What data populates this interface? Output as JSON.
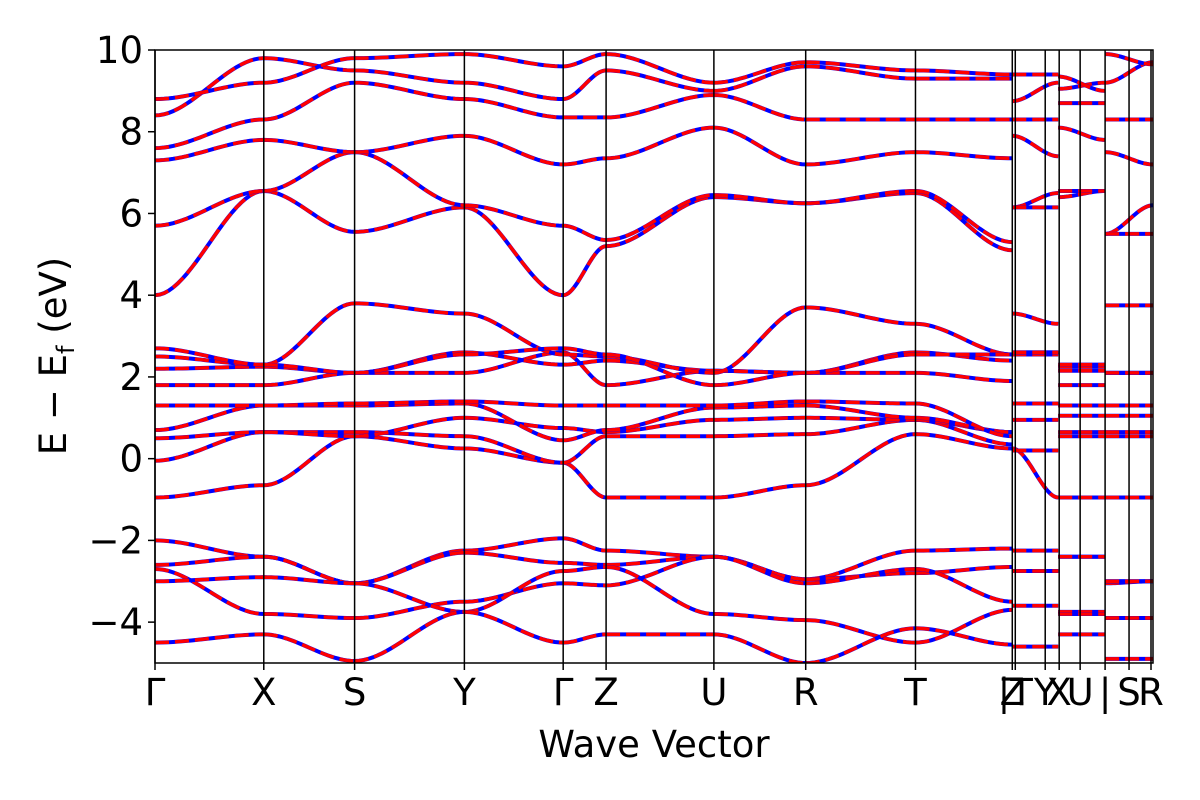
{
  "chart_data": {
    "type": "line",
    "title": "",
    "xlabel": "Wave Vector",
    "ylabel_main": "E − E",
    "ylabel_sub": "f",
    "ylabel_unit": " (eV)",
    "ylim": [
      -5,
      10
    ],
    "yticks": [
      {
        "value": 10,
        "label": "10"
      },
      {
        "value": 8,
        "label": "8"
      },
      {
        "value": 6,
        "label": "6"
      },
      {
        "value": 4,
        "label": "4"
      },
      {
        "value": 2,
        "label": "2"
      },
      {
        "value": 0,
        "label": "0"
      },
      {
        "value": -2,
        "label": "−2"
      },
      {
        "value": -4,
        "label": "−4"
      }
    ],
    "k_range": [
      0,
      1
    ],
    "high_symmetry_points": [
      {
        "label": "Γ",
        "k": 0.0
      },
      {
        "label": "X",
        "k": 0.109
      },
      {
        "label": "S",
        "k": 0.2
      },
      {
        "label": "Y",
        "k": 0.31
      },
      {
        "label": "Γ",
        "k": 0.409
      },
      {
        "label": "Z",
        "k": 0.452
      },
      {
        "label": "U",
        "k": 0.56
      },
      {
        "label": "R",
        "k": 0.652
      },
      {
        "label": "T",
        "k": 0.762
      },
      {
        "label": "Z",
        "k": 0.859
      },
      {
        "label": "|T",
        "k": 0.862
      },
      {
        "label": "Y",
        "k": 0.892
      },
      {
        "label": "X",
        "k": 0.906
      },
      {
        "label": "U",
        "k": 0.927
      },
      {
        "label": "|",
        "k": 0.952
      },
      {
        "label": "S",
        "k": 0.976
      },
      {
        "label": "R",
        "k": 0.998
      }
    ],
    "segment_boundaries": [
      0,
      0.109,
      0.2,
      0.31,
      0.409,
      0.452,
      0.56,
      0.652,
      0.762,
      0.859,
      0.905,
      0.952,
      1.0
    ],
    "series": [
      {
        "style": "solid",
        "color": "#0000ff"
      },
      {
        "style": "dashed",
        "color": "#ff0000"
      }
    ],
    "bands_segment_endpoints": [
      [
        [
          -0.95,
          -0.65
        ],
        [
          -0.65,
          0.55
        ],
        [
          0.55,
          0.25
        ],
        [
          0.25,
          -0.1
        ],
        [
          -0.1,
          -0.95
        ],
        [
          -0.95,
          -0.95
        ],
        [
          -0.95,
          -0.65
        ],
        [
          -0.65,
          0.6
        ],
        [
          0.6,
          0.25
        ],
        [
          0.25,
          -0.95
        ],
        [
          -0.95,
          -0.95
        ],
        [
          -0.95,
          -0.95
        ]
      ],
      [
        [
          -0.05,
          0.65
        ],
        [
          0.65,
          0.65
        ],
        [
          0.65,
          0.55
        ],
        [
          0.55,
          -0.1
        ],
        [
          -0.1,
          0.55
        ],
        [
          0.55,
          0.55
        ],
        [
          0.55,
          0.6
        ],
        [
          0.6,
          0.95
        ],
        [
          0.95,
          0.35
        ],
        [
          0.2,
          0.2
        ],
        [
          0.55,
          0.55
        ],
        [
          0.55,
          0.55
        ]
      ],
      [
        [
          0.5,
          0.65
        ],
        [
          0.65,
          0.55
        ],
        [
          0.55,
          1.0
        ],
        [
          1.0,
          0.75
        ],
        [
          0.75,
          0.65
        ],
        [
          0.65,
          0.95
        ],
        [
          0.95,
          1.0
        ],
        [
          1.0,
          0.95
        ],
        [
          0.95,
          0.65
        ],
        [
          0.95,
          0.95
        ],
        [
          0.65,
          0.65
        ],
        [
          0.65,
          0.65
        ]
      ],
      [
        [
          0.7,
          1.3
        ],
        [
          1.3,
          1.3
        ],
        [
          1.3,
          1.35
        ],
        [
          1.35,
          0.45
        ],
        [
          0.45,
          0.7
        ],
        [
          0.7,
          1.25
        ],
        [
          1.25,
          1.3
        ],
        [
          1.3,
          1.0
        ],
        [
          1.0,
          0.65
        ],
        [
          1.35,
          1.35
        ],
        [
          1.05,
          1.05
        ],
        [
          1.05,
          1.05
        ]
      ],
      [
        [
          1.3,
          1.3
        ],
        [
          1.3,
          1.35
        ],
        [
          1.35,
          1.4
        ],
        [
          1.4,
          1.3
        ],
        [
          1.3,
          1.3
        ],
        [
          1.3,
          1.3
        ],
        [
          1.3,
          1.4
        ],
        [
          1.4,
          1.35
        ],
        [
          1.35,
          0.55
        ],
        [
          1.35,
          1.35
        ],
        [
          1.3,
          1.3
        ],
        [
          1.3,
          1.3
        ]
      ],
      [
        [
          1.8,
          1.8
        ],
        [
          1.8,
          2.1
        ],
        [
          2.1,
          2.1
        ],
        [
          2.1,
          2.6
        ],
        [
          2.6,
          1.8
        ],
        [
          1.8,
          2.15
        ],
        [
          2.15,
          2.1
        ],
        [
          2.1,
          2.1
        ],
        [
          2.1,
          1.9
        ],
        [
          2.55,
          2.55
        ],
        [
          1.8,
          1.8
        ],
        [
          2.1,
          2.1
        ]
      ],
      [
        [
          2.2,
          2.25
        ],
        [
          2.25,
          2.1
        ],
        [
          2.1,
          2.6
        ],
        [
          2.6,
          2.3
        ],
        [
          2.3,
          2.4
        ],
        [
          2.4,
          2.15
        ],
        [
          2.15,
          2.1
        ],
        [
          2.1,
          2.6
        ],
        [
          2.6,
          2.4
        ],
        [
          2.6,
          2.6
        ],
        [
          2.15,
          2.15
        ],
        [
          2.1,
          2.1
        ]
      ],
      [
        [
          2.5,
          2.3
        ],
        [
          2.3,
          3.8
        ],
        [
          3.8,
          3.55
        ],
        [
          3.55,
          2.55
        ],
        [
          2.55,
          2.5
        ],
        [
          2.5,
          2.1
        ],
        [
          2.1,
          3.7
        ],
        [
          3.7,
          3.3
        ],
        [
          3.3,
          2.55
        ],
        [
          3.55,
          3.3
        ],
        [
          2.25,
          2.25
        ],
        [
          3.75,
          3.75
        ]
      ],
      [
        [
          2.7,
          2.3
        ],
        [
          2.3,
          2.1
        ],
        [
          2.1,
          2.55
        ],
        [
          2.55,
          2.7
        ],
        [
          2.7,
          2.55
        ],
        [
          2.55,
          1.8
        ],
        [
          1.8,
          2.1
        ],
        [
          2.1,
          2.55
        ],
        [
          2.55,
          2.55
        ],
        [
          2.6,
          2.6
        ],
        [
          2.3,
          2.3
        ],
        [
          2.1,
          2.1
        ]
      ],
      [
        [
          4.0,
          6.55
        ],
        [
          6.55,
          5.55
        ],
        [
          5.55,
          6.15
        ],
        [
          6.15,
          4.0
        ],
        [
          4.0,
          5.2
        ],
        [
          5.2,
          6.4
        ],
        [
          6.4,
          6.25
        ],
        [
          6.25,
          6.5
        ],
        [
          6.5,
          5.1
        ],
        [
          6.15,
          6.5
        ],
        [
          6.4,
          6.55
        ],
        [
          5.5,
          6.2
        ]
      ],
      [
        [
          5.7,
          6.55
        ],
        [
          6.55,
          7.5
        ],
        [
          7.5,
          6.2
        ],
        [
          6.2,
          5.7
        ],
        [
          5.7,
          5.35
        ],
        [
          5.35,
          6.45
        ],
        [
          6.45,
          6.25
        ],
        [
          6.25,
          6.55
        ],
        [
          6.55,
          5.3
        ],
        [
          6.15,
          6.15
        ],
        [
          6.55,
          6.55
        ],
        [
          5.5,
          5.5
        ]
      ],
      [
        [
          7.3,
          7.8
        ],
        [
          7.8,
          7.5
        ],
        [
          7.5,
          7.9
        ],
        [
          7.9,
          7.2
        ],
        [
          7.2,
          7.35
        ],
        [
          7.35,
          8.1
        ],
        [
          8.1,
          7.2
        ],
        [
          7.2,
          7.5
        ],
        [
          7.5,
          7.35
        ],
        [
          7.9,
          7.4
        ],
        [
          8.1,
          7.8
        ],
        [
          7.5,
          7.2
        ]
      ],
      [
        [
          7.6,
          8.3
        ],
        [
          8.3,
          9.2
        ],
        [
          9.2,
          8.8
        ],
        [
          8.8,
          8.35
        ],
        [
          8.35,
          8.35
        ],
        [
          8.35,
          8.9
        ],
        [
          8.9,
          8.3
        ],
        [
          8.3,
          8.3
        ],
        [
          8.3,
          8.3
        ],
        [
          8.3,
          8.3
        ],
        [
          8.7,
          8.7
        ],
        [
          8.3,
          8.3
        ]
      ],
      [
        [
          8.4,
          9.8
        ],
        [
          9.8,
          9.5
        ],
        [
          9.5,
          9.2
        ],
        [
          9.2,
          8.8
        ],
        [
          8.8,
          9.5
        ],
        [
          9.5,
          9.0
        ],
        [
          9.0,
          9.6
        ],
        [
          9.6,
          9.3
        ],
        [
          9.3,
          9.3
        ],
        [
          8.75,
          9.2
        ],
        [
          9.05,
          9.2
        ],
        [
          9.2,
          9.7
        ]
      ],
      [
        [
          8.8,
          9.2
        ],
        [
          9.2,
          9.8
        ],
        [
          9.8,
          9.9
        ],
        [
          9.9,
          9.6
        ],
        [
          9.6,
          9.9
        ],
        [
          9.9,
          9.2
        ],
        [
          9.2,
          9.7
        ],
        [
          9.7,
          9.5
        ],
        [
          9.5,
          9.4
        ],
        [
          9.4,
          9.4
        ],
        [
          9.35,
          9.0
        ],
        [
          9.9,
          9.65
        ]
      ],
      [
        [
          -2.0,
          -2.4
        ],
        [
          -2.4,
          -3.05
        ],
        [
          -3.05,
          -2.25
        ],
        [
          -2.25,
          -1.95
        ],
        [
          -1.95,
          -2.25
        ],
        [
          -2.25,
          -2.4
        ],
        [
          -2.4,
          -2.95
        ],
        [
          -2.95,
          -2.25
        ],
        [
          -2.25,
          -2.2
        ],
        [
          -2.25,
          -2.25
        ],
        [
          -2.4,
          -2.4
        ],
        [
          -3.05,
          -3.0
        ]
      ],
      [
        [
          -2.6,
          -2.4
        ],
        [
          -2.4,
          -3.05
        ],
        [
          -3.05,
          -2.3
        ],
        [
          -2.3,
          -2.55
        ],
        [
          -2.55,
          -2.6
        ],
        [
          -2.6,
          -2.4
        ],
        [
          -2.4,
          -2.95
        ],
        [
          -2.95,
          -2.8
        ],
        [
          -2.8,
          -2.65
        ],
        [
          -2.75,
          -2.75
        ],
        [
          -2.4,
          -2.4
        ],
        [
          -3.0,
          -3.0
        ]
      ],
      [
        [
          -2.7,
          -3.8
        ],
        [
          -3.8,
          -3.9
        ],
        [
          -3.9,
          -3.5
        ],
        [
          -3.5,
          -3.05
        ],
        [
          -3.05,
          -3.1
        ],
        [
          -3.1,
          -2.4
        ],
        [
          -2.4,
          -3.05
        ],
        [
          -3.05,
          -2.7
        ],
        [
          -2.7,
          -3.5
        ],
        [
          -2.75,
          -2.75
        ],
        [
          -3.75,
          -3.75
        ],
        [
          -3.0,
          -3.0
        ]
      ],
      [
        [
          -3.0,
          -2.9
        ],
        [
          -2.9,
          -3.05
        ],
        [
          -3.05,
          -3.75
        ],
        [
          -3.75,
          -2.75
        ],
        [
          -2.75,
          -2.65
        ],
        [
          -2.65,
          -3.8
        ],
        [
          -3.8,
          -3.95
        ],
        [
          -3.95,
          -4.5
        ],
        [
          -4.5,
          -3.7
        ],
        [
          -3.6,
          -3.6
        ],
        [
          -3.8,
          -3.8
        ],
        [
          -3.9,
          -3.9
        ]
      ],
      [
        [
          -4.5,
          -4.3
        ],
        [
          -4.3,
          -4.95
        ],
        [
          -4.95,
          -3.75
        ],
        [
          -3.75,
          -4.5
        ],
        [
          -4.5,
          -4.3
        ],
        [
          -4.3,
          -4.3
        ],
        [
          -4.3,
          -5.0
        ],
        [
          -5.0,
          -4.15
        ],
        [
          -4.15,
          -4.55
        ],
        [
          -4.6,
          -4.6
        ],
        [
          -4.3,
          -4.3
        ],
        [
          -4.9,
          -4.9
        ]
      ]
    ]
  }
}
